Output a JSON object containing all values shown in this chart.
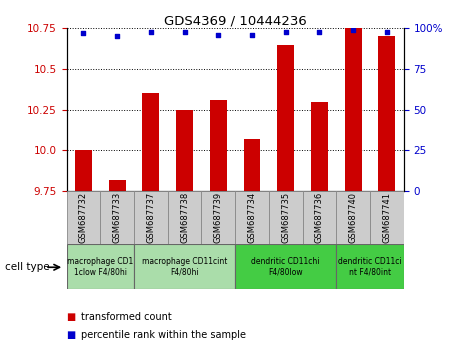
{
  "title": "GDS4369 / 10444236",
  "samples": [
    "GSM687732",
    "GSM687733",
    "GSM687737",
    "GSM687738",
    "GSM687739",
    "GSM687734",
    "GSM687735",
    "GSM687736",
    "GSM687740",
    "GSM687741"
  ],
  "transformed_counts": [
    10.0,
    9.82,
    10.35,
    10.25,
    10.31,
    10.07,
    10.65,
    10.3,
    10.75,
    10.7
  ],
  "percentile_ranks": [
    97,
    95,
    98,
    98,
    96,
    96,
    98,
    98,
    99,
    98
  ],
  "ylim_left": [
    9.75,
    10.75
  ],
  "ylim_right": [
    0,
    100
  ],
  "yticks_left": [
    9.75,
    10.0,
    10.25,
    10.5,
    10.75
  ],
  "yticks_right": [
    0,
    25,
    50,
    75,
    100
  ],
  "ytick_labels_right": [
    "0",
    "25",
    "50",
    "75",
    "100%"
  ],
  "bar_color": "#cc0000",
  "dot_color": "#0000cc",
  "bar_bottom": 9.75,
  "cell_type_groups": [
    {
      "label": "macrophage CD1\n1clow F4/80hi",
      "start": 0,
      "end": 2,
      "color": "#aaddaa"
    },
    {
      "label": "macrophage CD11cint\nF4/80hi",
      "start": 2,
      "end": 5,
      "color": "#aaddaa"
    },
    {
      "label": "dendritic CD11chi\nF4/80low",
      "start": 5,
      "end": 8,
      "color": "#44cc44"
    },
    {
      "label": "dendritic CD11ci\nnt F4/80int",
      "start": 8,
      "end": 10,
      "color": "#44cc44"
    }
  ],
  "legend_bar_label": "transformed count",
  "legend_dot_label": "percentile rank within the sample",
  "cell_type_label": "cell type",
  "sample_box_color": "#cccccc",
  "sample_box_edge": "#888888",
  "grid_dotted_ticks": [
    10.0,
    10.25,
    10.5
  ],
  "tick_color_left": "#cc0000",
  "tick_color_right": "#0000cc"
}
